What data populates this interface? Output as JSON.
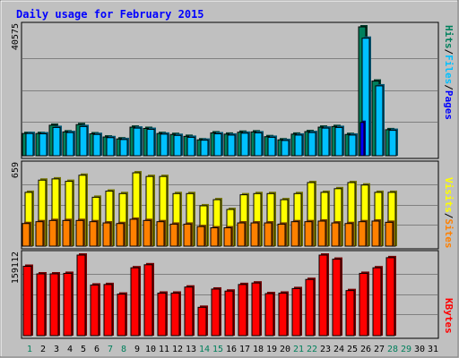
{
  "chart_data": [
    {
      "type": "bar",
      "title": "Daily usage for February 2015",
      "categories": [
        "1",
        "2",
        "3",
        "4",
        "5",
        "6",
        "7",
        "8",
        "9",
        "10",
        "11",
        "12",
        "13",
        "14",
        "15",
        "16",
        "17",
        "18",
        "19",
        "20",
        "21",
        "22",
        "23",
        "24",
        "25",
        "26",
        "27",
        "28",
        "29",
        "30",
        "31"
      ],
      "weekend_days": [
        "1",
        "7",
        "8",
        "14",
        "15",
        "21",
        "22",
        "28",
        "29"
      ],
      "ylim": [
        0,
        40575
      ],
      "ymax_label": "40575",
      "right_label": [
        "Pages",
        "Files",
        "Hits"
      ],
      "series": [
        {
          "name": "Hits",
          "color": "#00805c",
          "values": [
            7000,
            7000,
            9600,
            7500,
            9800,
            6900,
            5900,
            5300,
            9000,
            8600,
            7000,
            6700,
            6100,
            5000,
            7200,
            6800,
            7400,
            7500,
            6000,
            5000,
            6800,
            7600,
            9000,
            9200,
            6700,
            40575,
            23500,
            8200,
            0,
            0,
            0
          ]
        },
        {
          "name": "Files",
          "color": "#00c0ff",
          "values": [
            7000,
            6900,
            8900,
            7300,
            9200,
            6700,
            5700,
            5100,
            8700,
            8300,
            6800,
            6400,
            5800,
            4900,
            6900,
            6500,
            7100,
            7200,
            5800,
            4800,
            6500,
            7300,
            8700,
            8900,
            6500,
            37000,
            22000,
            8000,
            0,
            0,
            0
          ]
        },
        {
          "name": "Pages",
          "color": "#0000ff",
          "values": [
            0,
            0,
            0,
            0,
            0,
            0,
            0,
            0,
            0,
            0,
            0,
            0,
            0,
            0,
            0,
            0,
            0,
            0,
            0,
            0,
            0,
            0,
            0,
            0,
            0,
            10500,
            0,
            0,
            0,
            0,
            0
          ]
        }
      ]
    },
    {
      "type": "bar",
      "ylim": [
        0,
        659
      ],
      "ymax_label": "659",
      "right_label": [
        "Sites",
        "Visits"
      ],
      "series": [
        {
          "name": "Visits",
          "color": "#ffff00",
          "values": [
            440,
            540,
            550,
            530,
            580,
            400,
            450,
            430,
            600,
            570,
            570,
            430,
            430,
            330,
            380,
            300,
            420,
            430,
            430,
            380,
            430,
            520,
            440,
            470,
            520,
            500,
            440,
            440,
            0,
            0,
            0
          ]
        },
        {
          "name": "Sites",
          "color": "#ff8000",
          "values": [
            185,
            200,
            210,
            210,
            210,
            200,
            190,
            185,
            220,
            210,
            200,
            180,
            180,
            160,
            150,
            150,
            190,
            190,
            190,
            180,
            200,
            200,
            205,
            190,
            185,
            200,
            205,
            195,
            0,
            0,
            0
          ]
        }
      ]
    },
    {
      "type": "bar",
      "ylim": [
        0,
        159112
      ],
      "ymax_label": "159112",
      "right_label": [
        "KBytes"
      ],
      "series": [
        {
          "name": "KBytes",
          "color": "#ff0000",
          "values": [
            137000,
            122000,
            122000,
            123000,
            159112,
            100000,
            101000,
            82000,
            134000,
            140000,
            84000,
            84000,
            96000,
            56000,
            92000,
            88000,
            101000,
            104000,
            83000,
            84000,
            93000,
            111000,
            159112,
            151000,
            89000,
            123000,
            134000,
            154000,
            0,
            0,
            0
          ]
        }
      ]
    }
  ]
}
